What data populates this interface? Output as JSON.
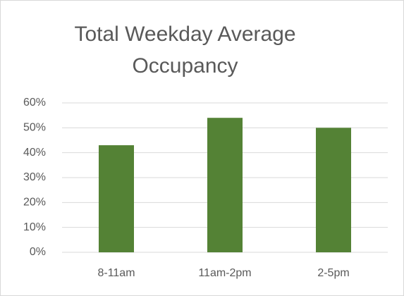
{
  "chart_data": {
    "type": "bar",
    "title": "Total Weekday Average Occupancy",
    "categories": [
      "8-11am",
      "11am-2pm",
      "2-5pm"
    ],
    "values": [
      43,
      54,
      50
    ],
    "color": "#548235",
    "ylim": [
      0,
      60
    ],
    "yticks": [
      {
        "value": 0,
        "label": "0%"
      },
      {
        "value": 10,
        "label": "10%"
      },
      {
        "value": 20,
        "label": "20%"
      },
      {
        "value": 30,
        "label": "30%"
      },
      {
        "value": 40,
        "label": "40%"
      },
      {
        "value": 50,
        "label": "50%"
      },
      {
        "value": 60,
        "label": "60%"
      }
    ],
    "grid": true
  }
}
